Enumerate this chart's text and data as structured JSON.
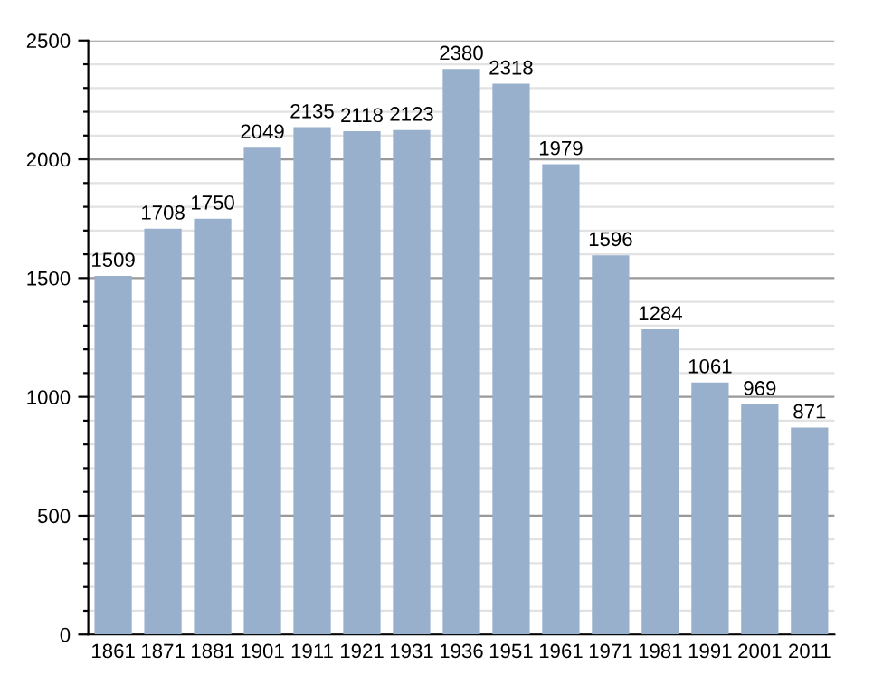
{
  "chart_data": {
    "type": "bar",
    "categories": [
      "1861",
      "1871",
      "1881",
      "1901",
      "1911",
      "1921",
      "1931",
      "1936",
      "1951",
      "1961",
      "1971",
      "1981",
      "1991",
      "2001",
      "2011"
    ],
    "values": [
      1509,
      1708,
      1750,
      2049,
      2135,
      2118,
      2123,
      2380,
      2318,
      1979,
      1596,
      1284,
      1061,
      969,
      871
    ],
    "color": "#98b0cb",
    "ylim": [
      0,
      2500
    ],
    "yticks": [
      0,
      {
        "value": 100,
        "label": null
      },
      {
        "value": 200,
        "label": null
      },
      {
        "value": 300,
        "label": null
      },
      {
        "value": 400,
        "label": null
      },
      500,
      {
        "value": 600,
        "label": null
      },
      {
        "value": 700,
        "label": null
      },
      {
        "value": 800,
        "label": null
      },
      {
        "value": 900,
        "label": null
      },
      1000,
      {
        "value": 1100,
        "label": null
      },
      {
        "value": 1200,
        "label": null
      },
      {
        "value": 1300,
        "label": null
      },
      {
        "value": 1400,
        "label": null
      },
      1500,
      {
        "value": 1600,
        "label": null
      },
      {
        "value": 1700,
        "label": null
      },
      {
        "value": 1800,
        "label": null
      },
      {
        "value": 1900,
        "label": null
      },
      2000,
      {
        "value": 2100,
        "label": null
      },
      {
        "value": 2200,
        "label": null
      },
      {
        "value": 2300,
        "label": null
      },
      {
        "value": 2400,
        "label": null
      },
      2500
    ],
    "grid": "y",
    "data_labels": true
  }
}
